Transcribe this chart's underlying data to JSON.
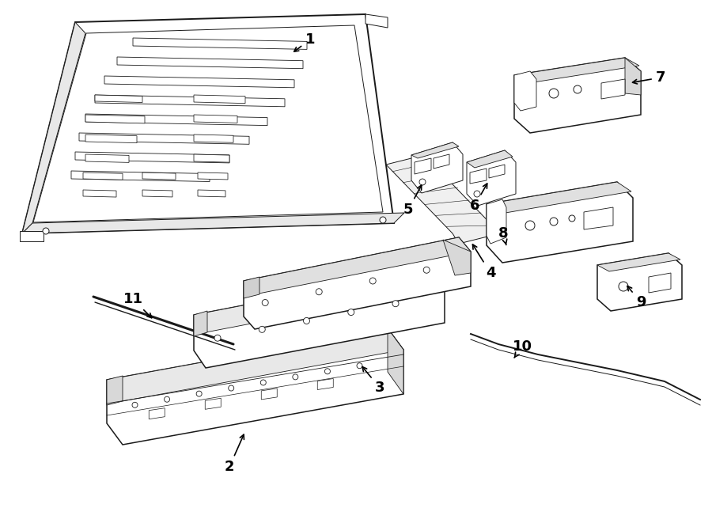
{
  "bg_color": "#ffffff",
  "line_color": "#1a1a1a",
  "text_color": "#000000",
  "fig_width": 9.0,
  "fig_height": 6.61,
  "dpi": 100
}
